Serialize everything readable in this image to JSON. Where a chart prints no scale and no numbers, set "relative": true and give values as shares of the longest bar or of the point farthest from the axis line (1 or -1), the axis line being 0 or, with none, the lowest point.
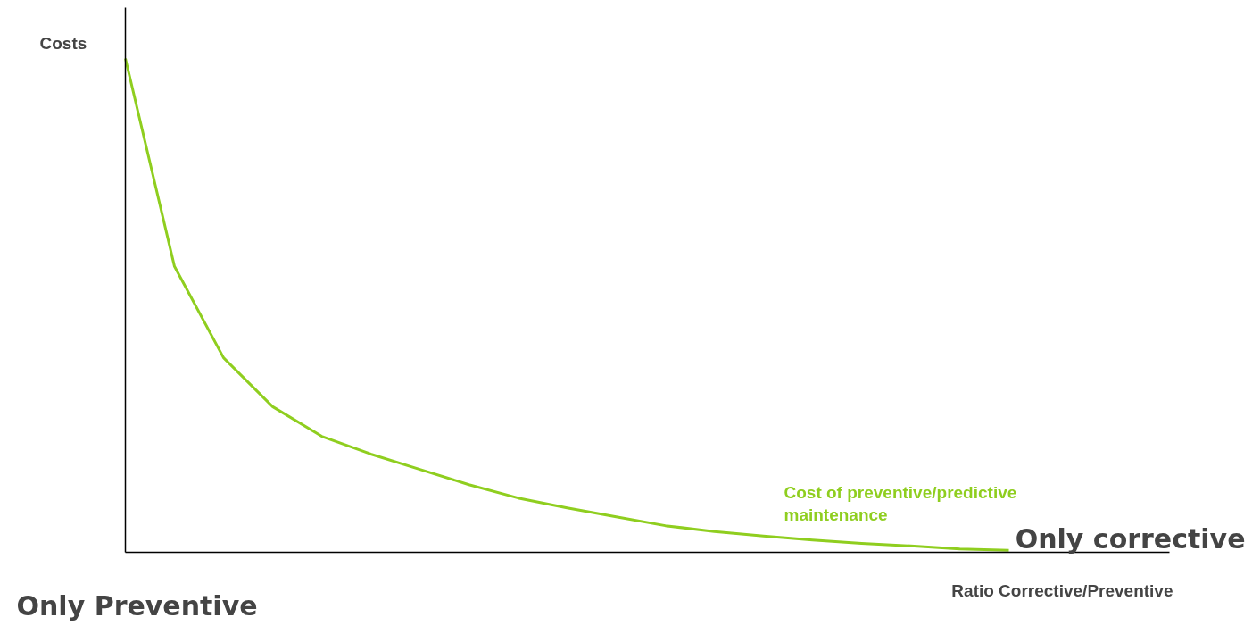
{
  "chart_data": {
    "type": "line",
    "relative": true,
    "ylabel": "Costs",
    "xlabel": "Ratio Corrective/Preventive",
    "categories": [
      null,
      null,
      null,
      null,
      null,
      null,
      null,
      null,
      null,
      null,
      null,
      null,
      null,
      null,
      null,
      null,
      null,
      null,
      null
    ],
    "series": [
      {
        "name": "Cost of preventive/predictive maintenance",
        "color": "#8fce1f",
        "values": [
          1.0,
          0.579,
          0.394,
          0.295,
          0.235,
          0.199,
          0.168,
          0.137,
          0.11,
          0.09,
          0.072,
          0.054,
          0.042,
          0.033,
          0.025,
          0.018,
          0.013,
          0.007,
          0.004
        ]
      }
    ],
    "annotations": [
      "Only Preventive",
      "Only corrective"
    ],
    "grid": false,
    "legend": false,
    "marker": "none",
    "line_style": "solid"
  }
}
